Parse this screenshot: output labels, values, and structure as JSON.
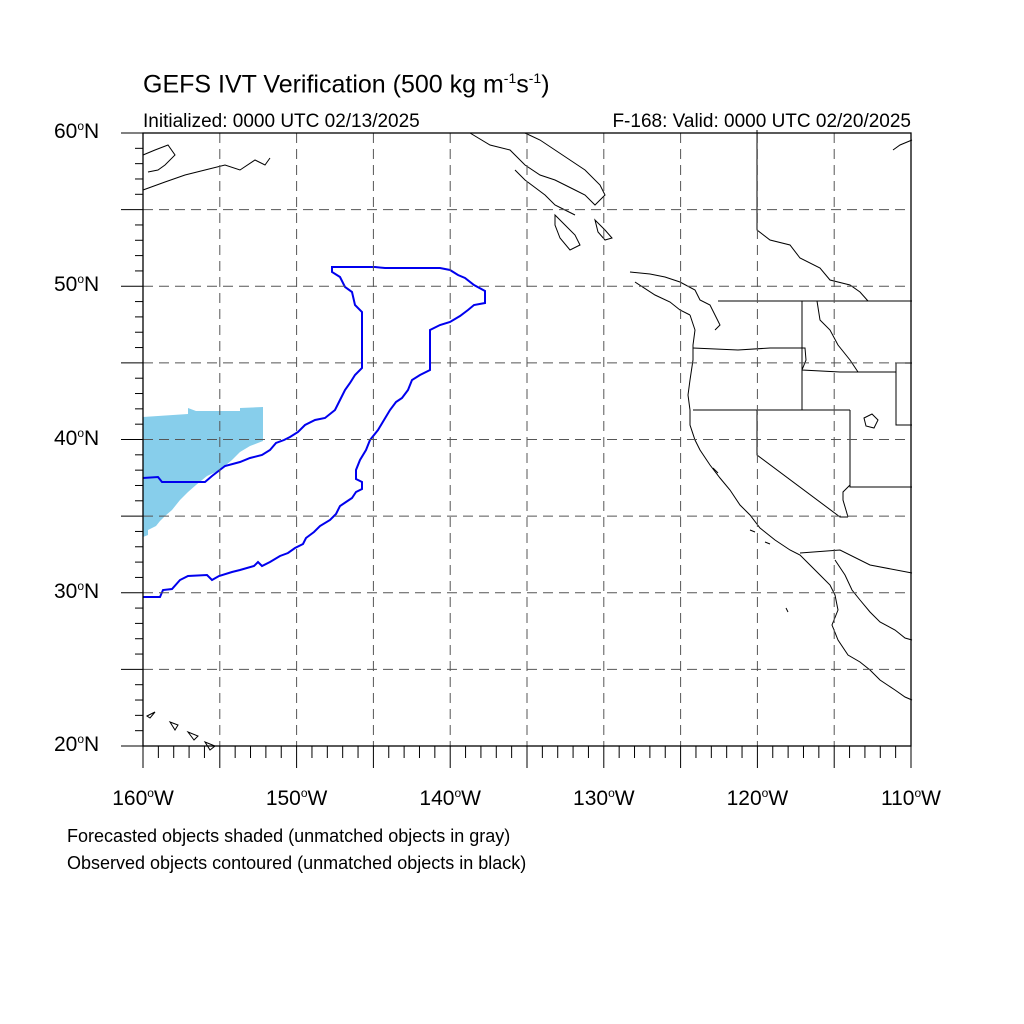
{
  "title": {
    "main": "GEFS IVT Verification (500 kg m",
    "sup1": "-1",
    "mid": "s",
    "sup2": "-1",
    "end": ")"
  },
  "subtitle_left": "Initialized: 0000 UTC 02/13/2025",
  "subtitle_right": "F-168: Valid: 0000 UTC 02/20/2025",
  "lat_labels": [
    {
      "value": "60",
      "deg": "o",
      "dir": "N"
    },
    {
      "value": "50",
      "deg": "o",
      "dir": "N"
    },
    {
      "value": "40",
      "deg": "o",
      "dir": "N"
    },
    {
      "value": "30",
      "deg": "o",
      "dir": "N"
    },
    {
      "value": "20",
      "deg": "o",
      "dir": "N"
    }
  ],
  "lon_labels": [
    {
      "value": "160",
      "deg": "o",
      "dir": "W"
    },
    {
      "value": "150",
      "deg": "o",
      "dir": "W"
    },
    {
      "value": "140",
      "deg": "o",
      "dir": "W"
    },
    {
      "value": "130",
      "deg": "o",
      "dir": "W"
    },
    {
      "value": "120",
      "deg": "o",
      "dir": "W"
    },
    {
      "value": "110",
      "deg": "o",
      "dir": "W"
    }
  ],
  "notes": [
    "Forecasted objects shaded (unmatched objects in gray)",
    "Observed objects contoured (unmatched objects in black)"
  ],
  "colors": {
    "forecast_shade": "#87CEEB",
    "observed_contour": "#0000EE",
    "coastline": "#000000",
    "grid": "#555555"
  }
}
